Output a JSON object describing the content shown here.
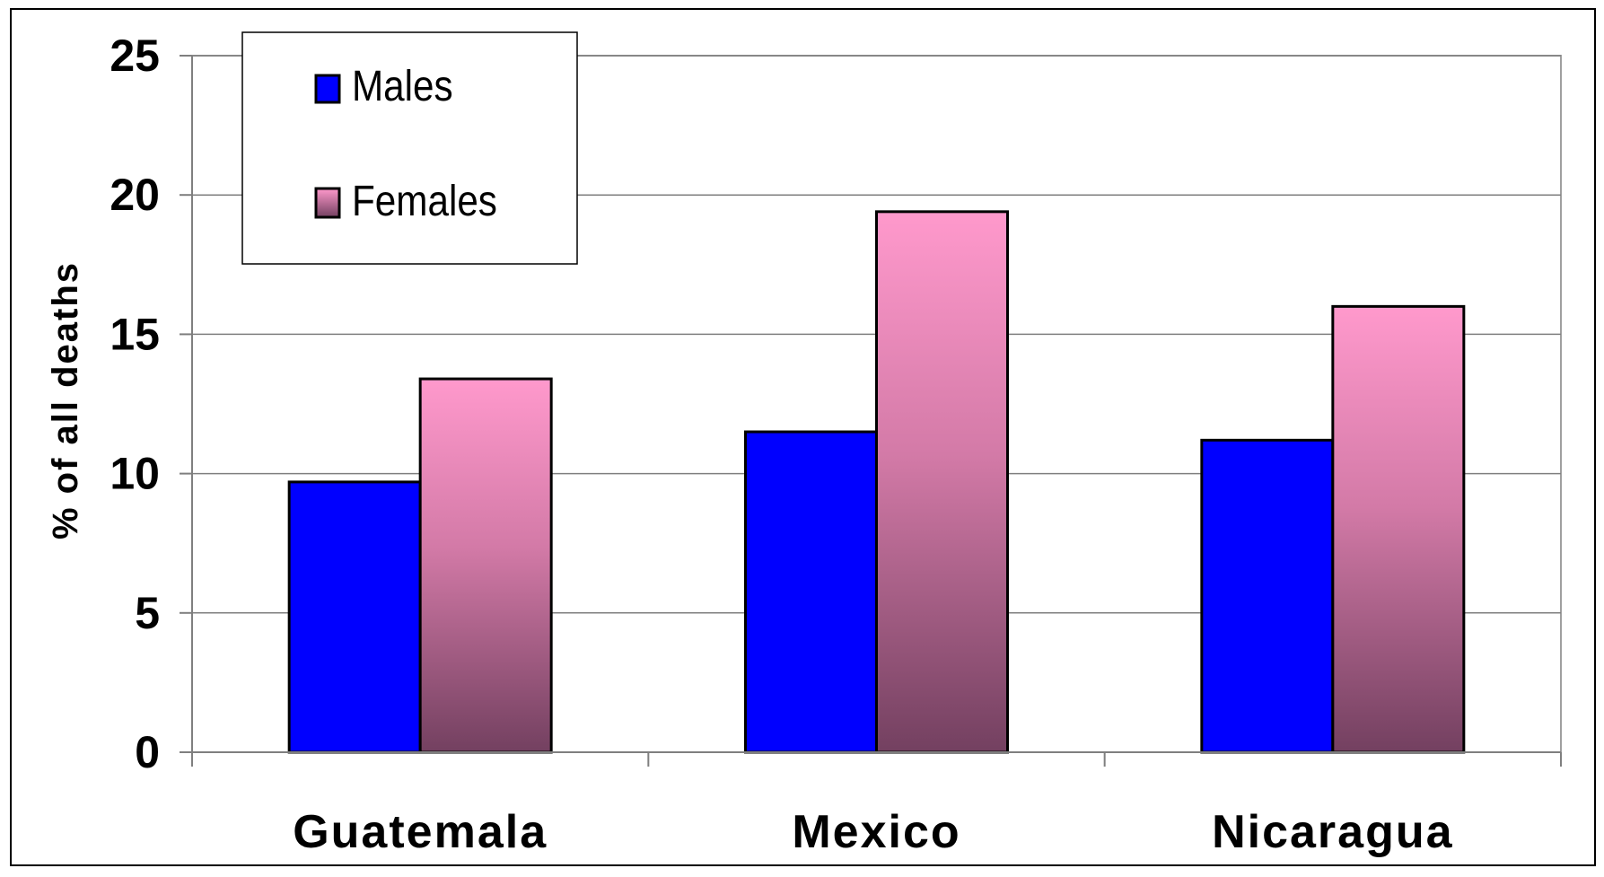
{
  "chart_data": {
    "type": "bar",
    "categories": [
      "Guatemala",
      "Mexico",
      "Nicaragua"
    ],
    "series": [
      {
        "name": "Males",
        "values": [
          9.7,
          11.5,
          11.2
        ],
        "color": "#0000ff"
      },
      {
        "name": "Females",
        "values": [
          13.4,
          19.4,
          16.0
        ],
        "color_top": "#ff99cc",
        "color_bottom": "#734060"
      }
    ],
    "title": "",
    "xlabel": "",
    "ylabel": "% of all deaths",
    "ylim": [
      0,
      25
    ],
    "yticks": [
      0,
      5,
      10,
      15,
      20,
      25
    ],
    "grid": true,
    "legend_position": "top-left"
  }
}
